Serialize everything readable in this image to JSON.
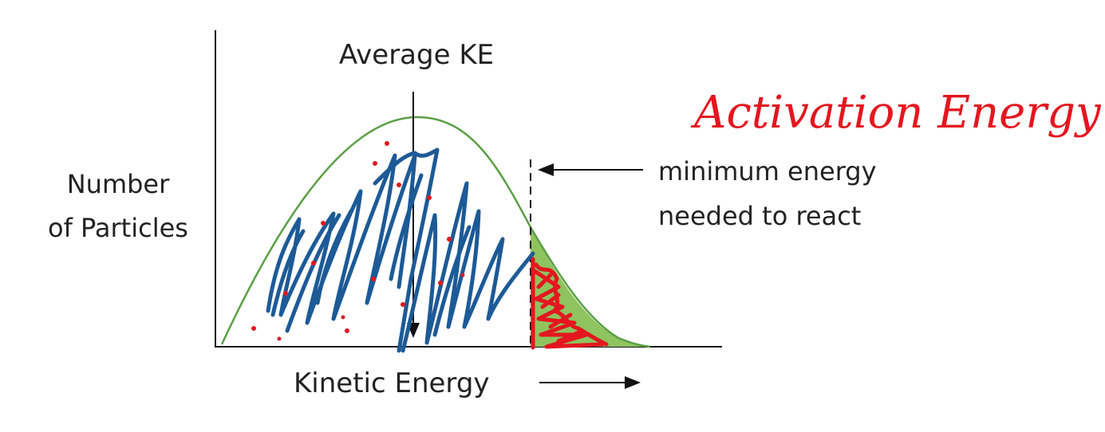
{
  "diagram": {
    "title": "Average KE",
    "y_label_line1": "Number",
    "y_label_line2": "of Particles",
    "x_label": "Kinetic Energy",
    "min_energy_line1": "minimum energy",
    "min_energy_line2": "needed to react",
    "annotation": "Activation Energy"
  },
  "colors": {
    "curve": "#5a9f45",
    "tail_fill": "#8fc35f",
    "ink_blue": "#1d5a96",
    "ink_red": "#e4161f",
    "axis": "#111111",
    "text": "#222222"
  }
}
